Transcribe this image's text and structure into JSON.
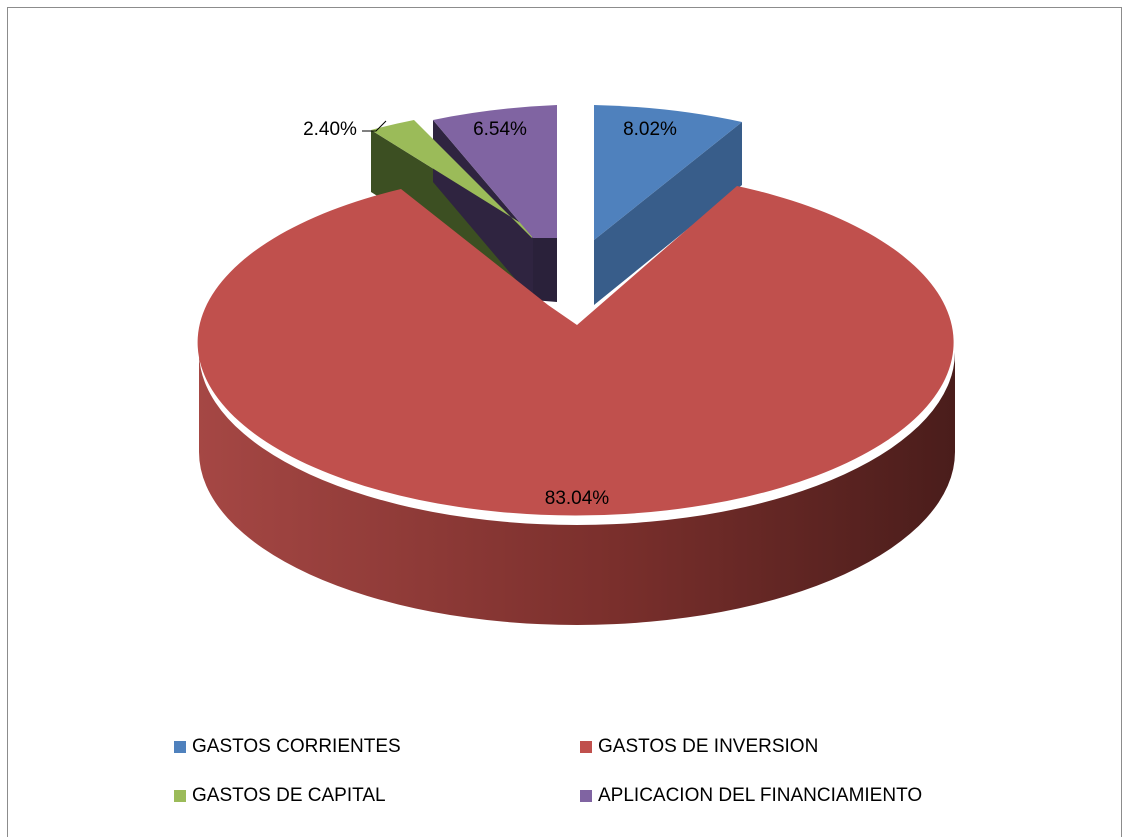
{
  "chart_data": {
    "type": "pie",
    "title": "",
    "series": [
      {
        "name": "GASTOS CORRIENTES",
        "value": 8.02,
        "label": "8.02%",
        "color": "#4f81bd"
      },
      {
        "name": "GASTOS DE INVERSION",
        "value": 83.04,
        "label": "83.04%",
        "color": "#c0504d"
      },
      {
        "name": "GASTOS DE CAPITAL",
        "value": 2.4,
        "label": "2.40%",
        "color": "#9bbb59"
      },
      {
        "name": "APLICACION DEL FINANCIAMIENTO",
        "value": 6.54,
        "label": "6.54%",
        "color": "#8064a2"
      }
    ],
    "style": "3d-exploded",
    "legend_position": "bottom"
  }
}
